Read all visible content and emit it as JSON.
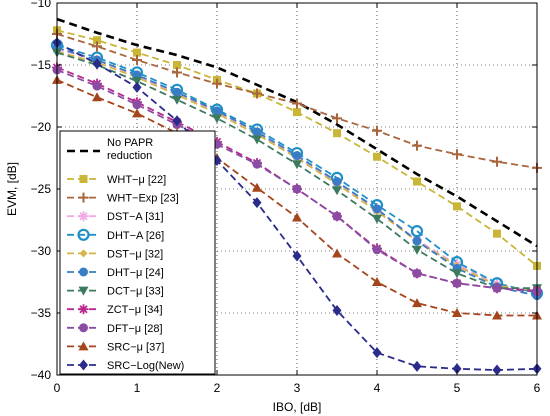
{
  "chart_data": {
    "type": "line",
    "title": "",
    "xlabel": "IBO, [dB]",
    "ylabel": "EVM, [dB]",
    "xlim": [
      0,
      6
    ],
    "ylim": [
      -40,
      -10
    ],
    "xticks": [
      "0",
      "1",
      "2",
      "3",
      "4",
      "5",
      "6"
    ],
    "yticks": [
      "-10",
      "-15",
      "-20",
      "-25",
      "-30",
      "-35",
      "-40"
    ],
    "grid": true,
    "legend_position": "lower-left",
    "x": [
      0,
      0.5,
      1,
      1.5,
      2,
      2.5,
      3,
      3.5,
      4,
      4.5,
      5,
      5.5,
      6
    ],
    "series": [
      {
        "name": "No PAPR reduction",
        "color": "#000000",
        "marker": "none",
        "values": [
          -11.3,
          -12.4,
          -13.4,
          -14.2,
          -15.2,
          -16.6,
          -18.0,
          -19.8,
          -21.8,
          -23.8,
          -25.6,
          -27.6,
          -29.6
        ]
      },
      {
        "name": "WHT−μ [22]",
        "color": "#c9b637",
        "marker": "square",
        "values": [
          -12.2,
          -13.0,
          -14.0,
          -15.0,
          -16.2,
          -17.3,
          -18.8,
          -20.5,
          -22.4,
          -24.4,
          -26.4,
          -28.6,
          -31.2
        ]
      },
      {
        "name": "WHT−Exp [23]",
        "color": "#a9653c",
        "marker": "plus",
        "values": [
          -12.5,
          -13.5,
          -14.6,
          -15.6,
          -16.5,
          -17.3,
          -18.1,
          -19.3,
          -20.3,
          -21.5,
          -22.2,
          -22.8,
          -23.3
        ]
      },
      {
        "name": "DST−A [31]",
        "color": "#f2a8e6",
        "marker": "star",
        "values": [
          -13.7,
          -14.6,
          -15.9,
          -17.3,
          -18.8,
          -20.5,
          -22.4,
          -24.5,
          -26.7,
          -29.1,
          -31.1,
          -32.7,
          -33.3
        ]
      },
      {
        "name": "DHT−A [26]",
        "color": "#1e90c8",
        "marker": "circle-open",
        "values": [
          -13.4,
          -14.4,
          -15.6,
          -17.0,
          -18.6,
          -20.2,
          -22.1,
          -24.1,
          -26.3,
          -28.4,
          -30.9,
          -32.6,
          -33.4
        ]
      },
      {
        "name": "DST−μ [32]",
        "color": "#d6b44a",
        "marker": "diamond-small",
        "values": [
          -13.9,
          -14.8,
          -16.0,
          -17.4,
          -18.9,
          -20.6,
          -22.5,
          -24.6,
          -26.8,
          -29.2,
          -31.2,
          -32.8,
          -33.2
        ]
      },
      {
        "name": "DHT−μ [24]",
        "color": "#3a7cc4",
        "marker": "circle",
        "values": [
          -13.6,
          -14.6,
          -15.8,
          -17.2,
          -18.7,
          -20.4,
          -22.3,
          -24.4,
          -26.6,
          -29.2,
          -31.4,
          -32.9,
          -33.6
        ]
      },
      {
        "name": "DCT−μ [33]",
        "color": "#3c7a60",
        "marker": "triangle-down",
        "values": [
          -14.0,
          -15.0,
          -16.3,
          -17.8,
          -19.3,
          -21.0,
          -23.0,
          -25.1,
          -27.4,
          -29.9,
          -31.8,
          -33.0,
          -33.0
        ]
      },
      {
        "name": "ZCT−μ [34]",
        "color": "#b72a8e",
        "marker": "star",
        "values": [
          -15.2,
          -16.5,
          -18.0,
          -19.6,
          -21.2,
          -22.9,
          -25.0,
          -27.2,
          -29.8,
          -31.8,
          -32.6,
          -33.0,
          -33.2
        ]
      },
      {
        "name": "DFT−μ [28]",
        "color": "#8a4da3",
        "marker": "circle",
        "values": [
          -15.4,
          -16.7,
          -18.2,
          -19.8,
          -21.4,
          -23.0,
          -25.0,
          -27.2,
          -29.9,
          -31.8,
          -32.6,
          -33.0,
          -33.3
        ]
      },
      {
        "name": "SRC−μ [37]",
        "color": "#a5451c",
        "marker": "triangle-up",
        "values": [
          -16.2,
          -17.6,
          -18.9,
          -20.5,
          -22.5,
          -24.9,
          -27.3,
          -30.2,
          -32.5,
          -34.2,
          -35.0,
          -35.2,
          -35.2
        ]
      },
      {
        "name": "SRC−Log(New)",
        "color": "#2b2b8c",
        "marker": "diamond",
        "values": [
          -13.2,
          -14.9,
          -16.8,
          -19.5,
          -22.7,
          -26.1,
          -30.4,
          -34.8,
          -38.2,
          -39.3,
          -39.5,
          -39.6,
          -39.5
        ]
      }
    ]
  }
}
